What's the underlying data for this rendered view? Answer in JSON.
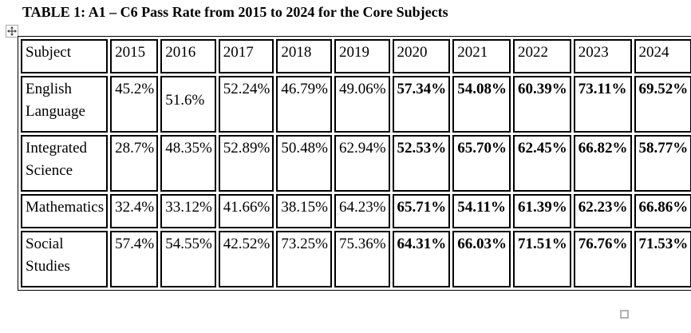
{
  "document": {
    "title": "TABLE 1: A1 – C6 Pass Rate from 2015 to 2024 for the Core Subjects"
  },
  "table": {
    "columns": [
      "Subject",
      "2015",
      "2016",
      "2017",
      "2018",
      "2019",
      "2020",
      "2021",
      "2022",
      "2023",
      "2024"
    ],
    "rows": [
      {
        "subject": "English Language",
        "values": [
          "45.2%",
          "51.6%",
          "52.24%",
          "46.79%",
          "49.06%",
          "57.34%",
          "54.08%",
          "60.39%",
          "73.11%",
          "69.52%"
        ]
      },
      {
        "subject": "Integrated Science",
        "values": [
          "28.7%",
          "48.35%",
          "52.89%",
          "50.48%",
          "62.94%",
          "52.53%",
          "65.70%",
          "62.45%",
          "66.82%",
          "58.77%"
        ]
      },
      {
        "subject": "Mathematics",
        "values": [
          "32.4%",
          "33.12%",
          "41.66%",
          "38.15%",
          "64.23%",
          "65.71%",
          "54.11%",
          "61.39%",
          "62.23%",
          "66.86%"
        ]
      },
      {
        "subject": "Social Studies",
        "values": [
          "57.4%",
          "54.55%",
          "42.52%",
          "73.25%",
          "75.36%",
          "64.31%",
          "66.03%",
          "71.51%",
          "76.76%",
          "71.53%"
        ]
      }
    ],
    "bold_value_columns": [
      "2020",
      "2021",
      "2022",
      "2023",
      "2024"
    ],
    "single_line_centered_cell": {
      "row_subject": "English Language",
      "column": "2016"
    }
  },
  "icons": {
    "move_handle_icon": "four-way-arrow",
    "resize_handle_icon": "small-open-square"
  },
  "colors": {
    "text": "#000000",
    "table_border": "#000000",
    "handle_border": "#a8a8a8",
    "background": "#ffffff"
  }
}
